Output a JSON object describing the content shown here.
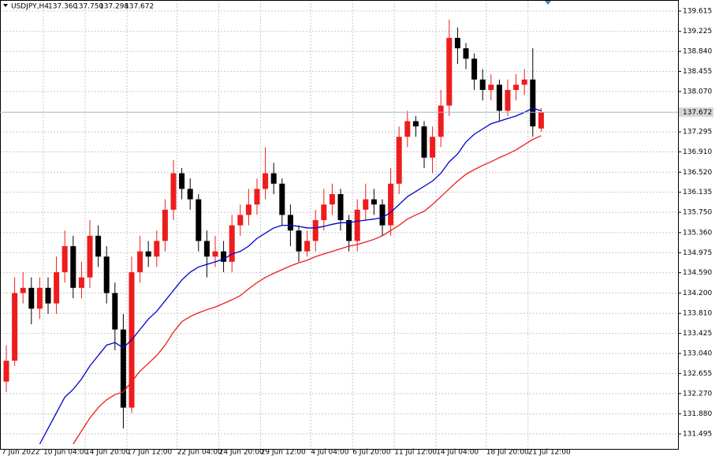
{
  "chart_data": {
    "type": "candlestick",
    "header": {
      "symbol": "USDJPY,H4",
      "open": "137.360",
      "high": "137.750",
      "low": "137.298",
      "close": "137.672"
    },
    "categories": [
      "7 Jun 2022",
      null,
      null,
      null,
      null,
      "10 Jun 04:00",
      null,
      null,
      null,
      null,
      "14 Jun 20:00",
      null,
      null,
      null,
      null,
      "17 Jun 12:00",
      null,
      null,
      null,
      null,
      null,
      "22 Jun 04:00",
      null,
      null,
      null,
      null,
      "24 Jun 20:00",
      null,
      null,
      null,
      null,
      "29 Jun 12:00",
      null,
      null,
      null,
      null,
      null,
      "4 Jul 04:00",
      null,
      null,
      null,
      null,
      "6 Jul 20:00",
      null,
      null,
      null,
      null,
      "11 Jul 12:00",
      null,
      null,
      null,
      null,
      "14 Jul 04:00",
      null,
      null,
      null,
      null,
      null,
      "18 Jul 20:00",
      null,
      null,
      null,
      null,
      "21 Jul 12:00",
      null
    ],
    "open": [
      132.5,
      132.9,
      134.2,
      134.3,
      133.9,
      134.3,
      134.0,
      134.6,
      135.1,
      134.3,
      134.5,
      135.3,
      134.9,
      134.2,
      133.5,
      132.0,
      134.6,
      135.0,
      134.9,
      135.2,
      135.8,
      136.5,
      136.2,
      136.0,
      135.2,
      134.9,
      135.0,
      134.8,
      135.5,
      135.7,
      135.9,
      136.2,
      136.5,
      136.3,
      135.7,
      135.4,
      135.0,
      135.2,
      135.6,
      135.9,
      136.1,
      135.6,
      135.2,
      135.8,
      136.0,
      135.9,
      135.5,
      136.3,
      137.2,
      137.5,
      137.4,
      136.8,
      137.2,
      137.8,
      139.1,
      138.9,
      138.7,
      138.3,
      138.1,
      138.2,
      137.7,
      138.1,
      138.2,
      138.3,
      137.36
    ],
    "high": [
      133.2,
      134.5,
      134.6,
      134.5,
      134.5,
      134.5,
      134.9,
      135.4,
      135.3,
      134.8,
      135.6,
      135.5,
      135.1,
      134.4,
      133.8,
      134.9,
      135.3,
      135.2,
      135.4,
      136.0,
      136.75,
      136.6,
      136.4,
      136.1,
      135.4,
      135.3,
      135.2,
      135.7,
      135.9,
      136.2,
      136.4,
      137.0,
      136.7,
      136.4,
      135.9,
      135.5,
      135.4,
      135.8,
      136.2,
      136.3,
      136.2,
      135.7,
      136.0,
      136.3,
      136.2,
      136.0,
      136.6,
      137.4,
      137.7,
      137.6,
      137.5,
      137.4,
      138.1,
      139.45,
      139.3,
      139.0,
      138.8,
      138.5,
      138.4,
      138.3,
      138.3,
      138.4,
      138.5,
      138.9,
      137.75
    ],
    "low": [
      132.3,
      132.8,
      134.0,
      133.6,
      133.7,
      133.8,
      133.8,
      134.4,
      134.1,
      134.1,
      134.3,
      134.7,
      134.0,
      133.1,
      131.6,
      131.9,
      134.4,
      134.7,
      134.7,
      135.0,
      135.6,
      136.0,
      135.8,
      135.0,
      134.5,
      134.7,
      134.6,
      134.6,
      135.3,
      135.5,
      135.7,
      136.0,
      136.1,
      135.5,
      135.1,
      134.8,
      134.9,
      135.0,
      135.4,
      135.7,
      135.4,
      135.0,
      135.0,
      135.6,
      135.7,
      135.3,
      135.3,
      136.1,
      137.0,
      137.2,
      136.6,
      136.5,
      137.0,
      137.6,
      138.6,
      138.5,
      138.1,
      137.9,
      137.9,
      137.5,
      137.6,
      137.9,
      138.0,
      137.2,
      137.298
    ],
    "close": [
      132.9,
      134.2,
      134.3,
      133.9,
      134.3,
      134.0,
      134.6,
      135.1,
      134.3,
      134.5,
      135.3,
      134.9,
      134.2,
      133.5,
      132.0,
      134.6,
      135.0,
      134.9,
      135.2,
      135.8,
      136.5,
      136.2,
      136.0,
      135.2,
      134.9,
      135.0,
      134.8,
      135.5,
      135.7,
      135.9,
      136.2,
      136.5,
      136.3,
      135.7,
      135.4,
      135.0,
      135.2,
      135.6,
      135.9,
      136.1,
      135.6,
      135.2,
      135.8,
      136.0,
      135.9,
      135.5,
      136.3,
      137.2,
      137.5,
      137.4,
      136.8,
      137.2,
      137.8,
      139.1,
      138.9,
      138.7,
      138.3,
      138.1,
      138.2,
      137.7,
      138.1,
      138.2,
      138.3,
      137.4,
      137.672
    ],
    "up_color": "#ee1c1c",
    "down_color": "#000000",
    "lines": [
      {
        "color": "#0000cc",
        "values": [
          null,
          null,
          null,
          null,
          131.3,
          131.6,
          131.9,
          132.2,
          132.35,
          132.55,
          132.8,
          133.0,
          133.2,
          133.25,
          133.15,
          133.3,
          133.5,
          133.7,
          133.85,
          134.05,
          134.25,
          134.45,
          134.6,
          134.7,
          134.75,
          134.8,
          134.85,
          134.95,
          135.0,
          135.1,
          135.25,
          135.35,
          135.45,
          135.5,
          135.5,
          135.48,
          135.45,
          135.45,
          135.48,
          135.52,
          135.55,
          135.55,
          135.58,
          135.6,
          135.62,
          135.65,
          135.75,
          135.9,
          136.05,
          136.15,
          136.25,
          136.35,
          136.5,
          136.72,
          136.87,
          137.1,
          137.25,
          137.35,
          137.45,
          137.5,
          137.55,
          137.6,
          137.67,
          137.75,
          137.7
        ]
      },
      {
        "color": "#ee1c1c",
        "values": [
          null,
          null,
          null,
          null,
          null,
          null,
          null,
          null,
          131.3,
          131.55,
          131.8,
          132.0,
          132.15,
          132.25,
          132.3,
          132.5,
          132.7,
          132.85,
          133.0,
          133.2,
          133.45,
          133.65,
          133.75,
          133.82,
          133.88,
          133.93,
          134.0,
          134.07,
          134.15,
          134.28,
          134.4,
          134.5,
          134.58,
          134.65,
          134.72,
          134.78,
          134.83,
          134.9,
          134.95,
          135.0,
          135.05,
          135.1,
          135.13,
          135.18,
          135.23,
          135.3,
          135.4,
          135.5,
          135.62,
          135.7,
          135.77,
          135.9,
          136.05,
          136.2,
          136.35,
          136.48,
          136.57,
          136.65,
          136.72,
          136.8,
          136.87,
          136.95,
          137.05,
          137.15,
          137.22
        ]
      }
    ],
    "price_line": {
      "value": 137.672,
      "label": "137.672"
    },
    "ylim": [
      131.192,
      139.827
    ],
    "yticks": [
      {
        "value": 131.495,
        "label": "131.495"
      },
      {
        "value": 131.88,
        "label": "131.880"
      },
      {
        "value": 132.27,
        "label": "132.270"
      },
      {
        "value": 132.655,
        "label": "132.655"
      },
      {
        "value": 133.04,
        "label": "133.040"
      },
      {
        "value": 133.425,
        "label": "133.425"
      },
      {
        "value": 133.81,
        "label": "133.810"
      },
      {
        "value": 134.2,
        "label": "134.200"
      },
      {
        "value": 134.59,
        "label": "134.590"
      },
      {
        "value": 134.975,
        "label": "134.975"
      },
      {
        "value": 135.36,
        "label": "135.360"
      },
      {
        "value": 135.75,
        "label": "135.750"
      },
      {
        "value": 136.135,
        "label": "136.135"
      },
      {
        "value": 136.52,
        "label": "136.520"
      },
      {
        "value": 136.91,
        "label": "136.910"
      },
      {
        "value": 137.295,
        "label": "137.295"
      },
      {
        "value": 138.07,
        "label": "138.070"
      },
      {
        "value": 138.455,
        "label": "138.455"
      },
      {
        "value": 138.84,
        "label": "138.840"
      },
      {
        "value": 139.225,
        "label": "139.225"
      },
      {
        "value": 139.615,
        "label": "139.615"
      }
    ],
    "grid": true
  }
}
